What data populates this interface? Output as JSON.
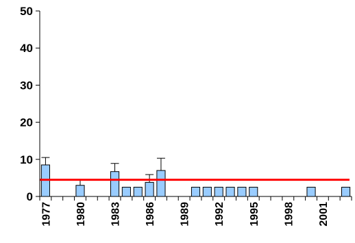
{
  "chart_data": {
    "type": "bar",
    "title": "",
    "xlabel": "",
    "ylabel": "",
    "ylim": [
      0,
      50
    ],
    "yticks": [
      0,
      10,
      20,
      30,
      40,
      50
    ],
    "x_tick_labels": [
      "1977",
      "1980",
      "1983",
      "1986",
      "1989",
      "1992",
      "1995",
      "1998",
      "2001"
    ],
    "categories": [
      "1977",
      "1978",
      "1979",
      "1980",
      "1981",
      "1982",
      "1983",
      "1984",
      "1985",
      "1986",
      "1987",
      "1988",
      "1989",
      "1990",
      "1991",
      "1992",
      "1993",
      "1994",
      "1995",
      "1996",
      "1997",
      "1998",
      "1999",
      "2000",
      "2001",
      "2002",
      "2003"
    ],
    "values": [
      8.5,
      0,
      0,
      3.0,
      0,
      0,
      6.7,
      2.5,
      2.5,
      3.8,
      7.0,
      0,
      0,
      2.5,
      2.5,
      2.5,
      2.5,
      2.5,
      2.5,
      0,
      0,
      0,
      0,
      2.5,
      0,
      0,
      2.5
    ],
    "error_up": [
      10.5,
      null,
      null,
      4.6,
      null,
      null,
      8.9,
      null,
      null,
      5.9,
      10.3,
      null,
      null,
      null,
      null,
      null,
      null,
      null,
      null,
      null,
      null,
      null,
      null,
      null,
      null,
      null,
      null
    ],
    "reference_line": 4.5,
    "grid": false,
    "colors": {
      "bar_fill": "#99ccff",
      "bar_stroke": "#000000",
      "reference_line": "#ff0000",
      "axis": "#000000"
    }
  }
}
